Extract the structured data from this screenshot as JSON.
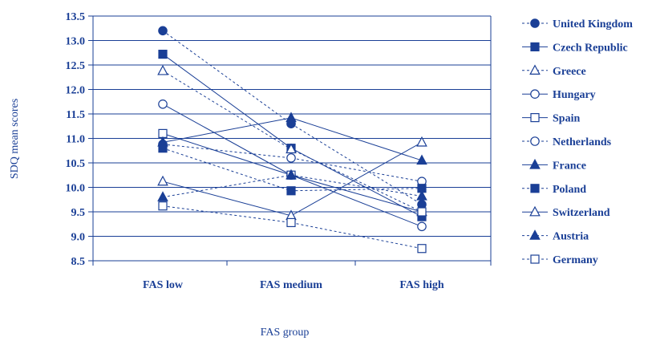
{
  "chart_data": {
    "type": "line",
    "title": "",
    "xlabel": "FAS group",
    "ylabel": "SDQ mean scores",
    "categories": [
      "FAS low",
      "FAS medium",
      "FAS high"
    ],
    "ylim": [
      8.5,
      13.5
    ],
    "yticks": [
      "13.5",
      "13.0",
      "12.5",
      "12.0",
      "11.5",
      "11.0",
      "10.5",
      "10.0",
      "9.5",
      "9.0",
      "8.5"
    ],
    "grid": true,
    "legend_position": "right",
    "color": "#1a3f96",
    "series": [
      {
        "name": "United Kingdom",
        "values": [
          13.2,
          11.3,
          9.65
        ],
        "marker": "circle",
        "filled": true,
        "dashed": true
      },
      {
        "name": "Czech Republic",
        "values": [
          12.72,
          10.8,
          9.4
        ],
        "marker": "square",
        "filled": true,
        "dashed": false
      },
      {
        "name": "Greece",
        "values": [
          12.38,
          10.78,
          9.5
        ],
        "marker": "triangle",
        "filled": false,
        "dashed": true
      },
      {
        "name": "Hungary",
        "values": [
          11.7,
          10.25,
          9.2
        ],
        "marker": "circle",
        "filled": false,
        "dashed": false
      },
      {
        "name": "Spain",
        "values": [
          11.1,
          10.25,
          9.5
        ],
        "marker": "square",
        "filled": false,
        "dashed": false
      },
      {
        "name": "Netherlands",
        "values": [
          10.88,
          10.6,
          10.12
        ],
        "marker": "circle",
        "filled": false,
        "dashed": true
      },
      {
        "name": "France",
        "values": [
          10.92,
          11.42,
          10.55
        ],
        "marker": "triangle",
        "filled": true,
        "dashed": false
      },
      {
        "name": "Poland",
        "values": [
          10.8,
          9.93,
          9.98
        ],
        "marker": "square",
        "filled": true,
        "dashed": true
      },
      {
        "name": "Switzerland",
        "values": [
          10.12,
          9.42,
          10.92
        ],
        "marker": "triangle",
        "filled": false,
        "dashed": false
      },
      {
        "name": "Austria",
        "values": [
          9.8,
          10.25,
          9.82
        ],
        "marker": "triangle",
        "filled": true,
        "dashed": true
      },
      {
        "name": "Germany",
        "values": [
          9.62,
          9.28,
          8.75
        ],
        "marker": "square",
        "filled": false,
        "dashed": true
      }
    ]
  }
}
